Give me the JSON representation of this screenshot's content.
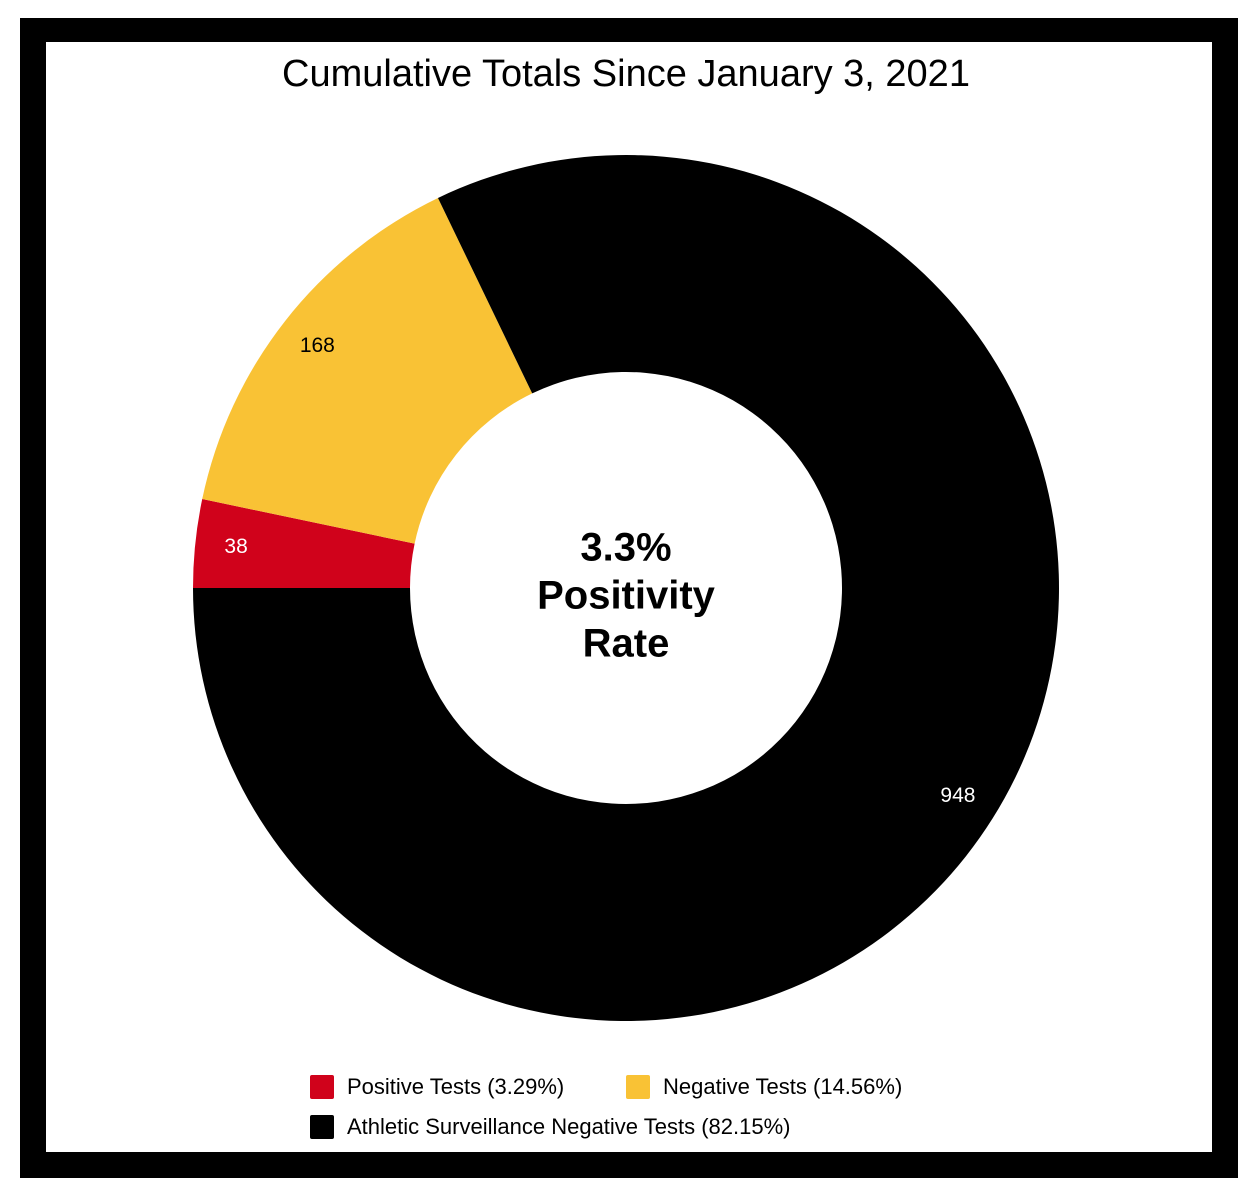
{
  "chart_data": {
    "type": "donut",
    "title": "Cumulative Totals Since January 3, 2021",
    "categories": [
      "Positive Tests (3.29%)",
      "Negative Tests (14.56%)",
      "Athletic Surveillance Negative Tests (82.15%)"
    ],
    "values": [
      38,
      168,
      948
    ],
    "colors": [
      "#d0021b",
      "#f9c235",
      "#000000"
    ],
    "center_text": [
      "3.3%",
      "Positivity",
      "Rate"
    ]
  }
}
